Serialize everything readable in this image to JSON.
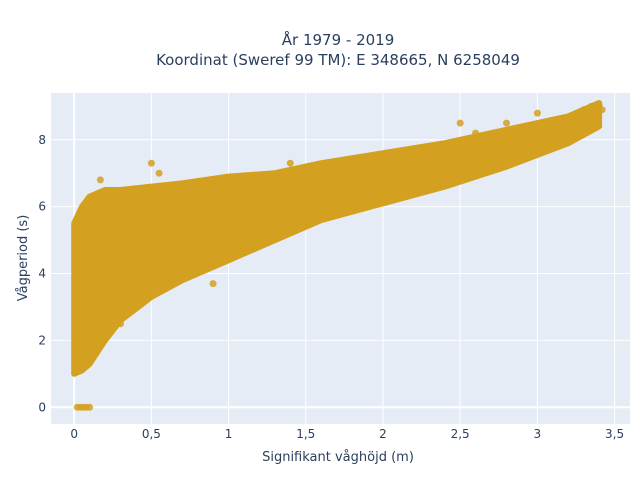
{
  "chart_data": {
    "type": "scatter",
    "title_line1": "År 1979 - 2019",
    "title_line2": "Koordinat (Sweref 99 TM): E 348665, N 6258049",
    "xlabel": "Signifikant våghöjd (m)",
    "ylabel": "Vågperiod (s)",
    "xlim": [
      -0.15,
      3.6
    ],
    "ylim": [
      -0.5,
      9.4
    ],
    "x_ticks": [
      0,
      0.5,
      1,
      1.5,
      2,
      2.5,
      3,
      3.5
    ],
    "x_tick_labels": [
      "0",
      "0,5",
      "1",
      "1,5",
      "2",
      "2,5",
      "3",
      "3,5"
    ],
    "y_ticks": [
      0,
      2,
      4,
      6,
      8
    ],
    "y_tick_labels": [
      "0",
      "2",
      "4",
      "6",
      "8"
    ],
    "grid": true,
    "legend": "none",
    "marker_color": "#d4a020",
    "background_color": "#e5ecf6",
    "series": [
      {
        "envelope_x": [
          0.0,
          0.05,
          0.1,
          0.2,
          0.3,
          0.5,
          0.7,
          1.0,
          1.3,
          1.6,
          2.0,
          2.4,
          2.8,
          3.2,
          3.4
        ],
        "envelope_lower_y": [
          1.0,
          1.1,
          1.3,
          2.0,
          2.6,
          3.3,
          3.8,
          4.4,
          5.0,
          5.6,
          6.1,
          6.6,
          7.2,
          7.9,
          8.4
        ],
        "envelope_upper_y": [
          5.5,
          6.0,
          6.3,
          6.5,
          6.5,
          6.6,
          6.7,
          6.9,
          7.0,
          7.3,
          7.6,
          7.9,
          8.3,
          8.7,
          9.1
        ],
        "points": [
          [
            0.02,
            0.0
          ],
          [
            0.04,
            0.0
          ],
          [
            0.06,
            0.0
          ],
          [
            0.08,
            0.0
          ],
          [
            0.1,
            0.0
          ],
          [
            0.5,
            7.3
          ],
          [
            0.55,
            7.0
          ],
          [
            0.17,
            6.8
          ],
          [
            1.4,
            7.3
          ],
          [
            2.5,
            8.5
          ],
          [
            2.6,
            8.2
          ],
          [
            2.8,
            8.5
          ],
          [
            3.0,
            8.8
          ],
          [
            3.15,
            8.6
          ],
          [
            3.3,
            8.9
          ],
          [
            3.35,
            9.0
          ],
          [
            3.4,
            9.05
          ],
          [
            3.42,
            8.9
          ],
          [
            0.02,
            5.4
          ],
          [
            0.05,
            5.2
          ],
          [
            0.3,
            2.5
          ],
          [
            0.9,
            3.7
          ]
        ]
      }
    ]
  }
}
